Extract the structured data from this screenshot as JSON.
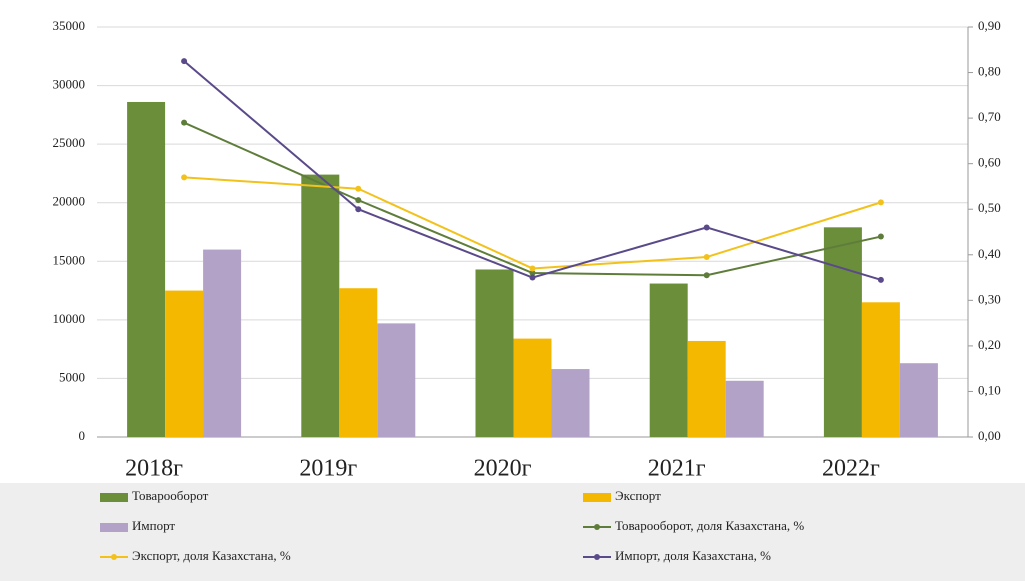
{
  "chart_data": {
    "type": "bar",
    "categories": [
      "2018г",
      "2019г",
      "2020г",
      "2021г",
      "2022г"
    ],
    "ylim": [
      0,
      35000
    ],
    "yticks": [
      0,
      5000,
      10000,
      15000,
      20000,
      25000,
      30000,
      35000
    ],
    "y2lim": [
      0,
      0.9
    ],
    "y2ticks": [
      {
        "value": 0,
        "label": "0,00"
      },
      {
        "value": 0.1,
        "label": "0,10"
      },
      {
        "value": 0.2,
        "label": "0,20"
      },
      {
        "value": 0.3,
        "label": "0,30"
      },
      {
        "value": 0.4,
        "label": "0,40"
      },
      {
        "value": 0.5,
        "label": "0,50"
      },
      {
        "value": 0.6,
        "label": "0,60"
      },
      {
        "value": 0.7,
        "label": "0,70"
      },
      {
        "value": 0.8,
        "label": "0,80"
      },
      {
        "value": 0.9,
        "label": "0,90"
      }
    ],
    "grid": true,
    "series": [
      {
        "name": "Товарооборот",
        "type": "bar",
        "color": "#6b8e3a",
        "values": [
          28600,
          22400,
          14300,
          13100,
          17900
        ]
      },
      {
        "name": "Экспорт",
        "type": "bar",
        "color": "#f5b800",
        "values": [
          12500,
          12700,
          8400,
          8200,
          11500
        ]
      },
      {
        "name": "Импорт",
        "type": "bar",
        "color": "#b3a2c7",
        "values": [
          16000,
          9700,
          5800,
          4800,
          6300
        ]
      },
      {
        "name": "Товарооборот, доля Казахстана, %",
        "type": "line",
        "axis": "y2",
        "color": "#5f7d3a",
        "values": [
          0.69,
          0.52,
          0.36,
          0.355,
          0.44
        ]
      },
      {
        "name": "Экспорт, доля Казахстана, %",
        "type": "line",
        "axis": "y2",
        "color": "#f2c21b",
        "values": [
          0.57,
          0.545,
          0.37,
          0.395,
          0.515
        ]
      },
      {
        "name": "Импорт, доля Казахстана, %",
        "type": "line",
        "axis": "y2",
        "color": "#5b4a8a",
        "values": [
          0.825,
          0.5,
          0.35,
          0.46,
          0.345
        ]
      }
    ]
  }
}
